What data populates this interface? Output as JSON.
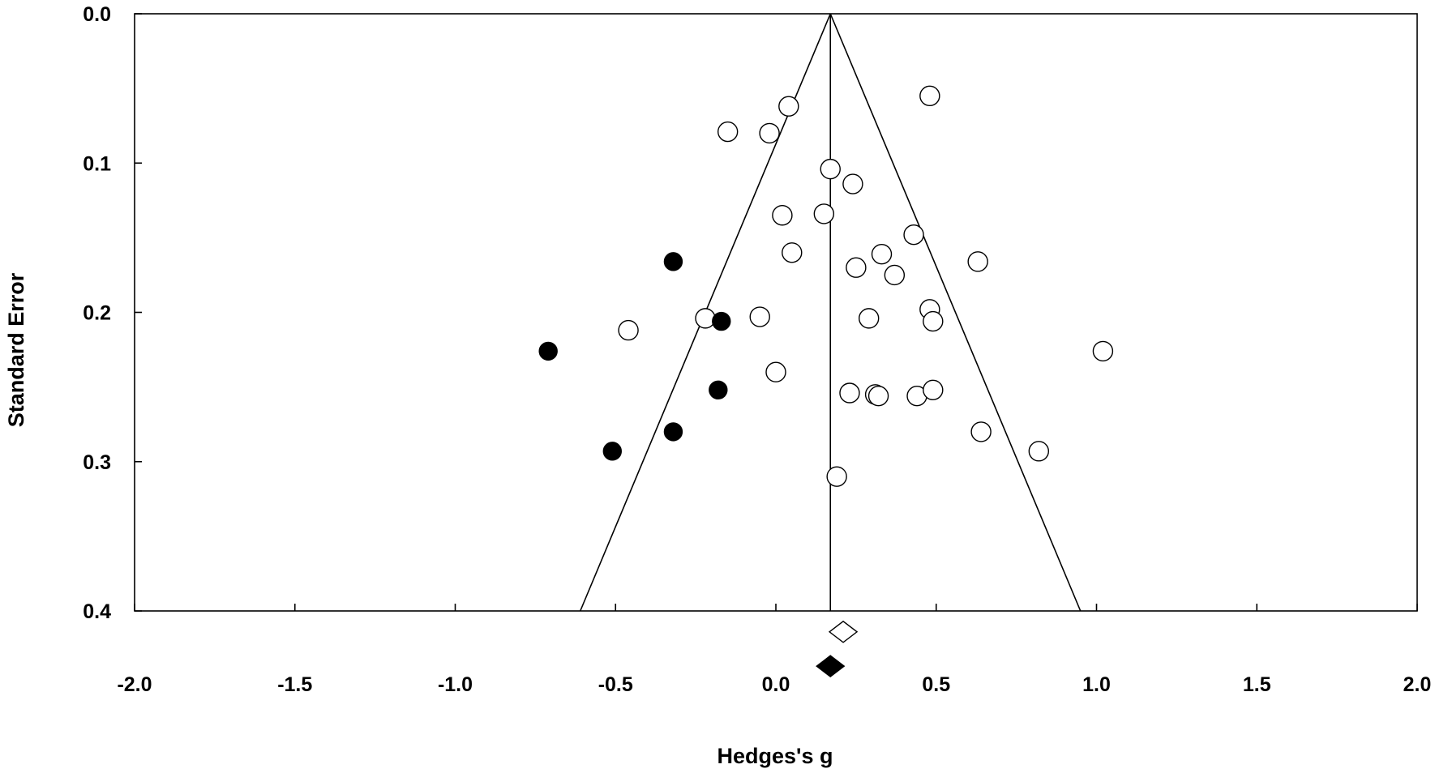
{
  "chart_data": {
    "type": "scatter",
    "title": "",
    "xlabel": "Hedges's g",
    "ylabel": "Standard Error",
    "xlim": [
      -2.0,
      2.0
    ],
    "ylim": [
      0.0,
      0.4
    ],
    "y_inverted": true,
    "x_ticks": [
      "-2.0",
      "-1.5",
      "-1.0",
      "-0.5",
      "0.0",
      "0.5",
      "1.0",
      "1.5",
      "2.0"
    ],
    "y_ticks": [
      "0.0",
      "0.1",
      "0.2",
      "0.3",
      "0.4"
    ],
    "grid": false,
    "legend": "none",
    "pooled_effect": 0.17,
    "funnel": {
      "apex": [
        0.17,
        0.0
      ],
      "base_left": [
        -0.61,
        0.4
      ],
      "base_right": [
        0.95,
        0.4
      ]
    },
    "series": [
      {
        "marker": "open-circle",
        "points": [
          {
            "x": 0.48,
            "y": 0.055
          },
          {
            "x": 0.04,
            "y": 0.062
          },
          {
            "x": -0.15,
            "y": 0.079
          },
          {
            "x": -0.02,
            "y": 0.08
          },
          {
            "x": 0.17,
            "y": 0.104
          },
          {
            "x": 0.24,
            "y": 0.114
          },
          {
            "x": 0.02,
            "y": 0.135
          },
          {
            "x": 0.15,
            "y": 0.134
          },
          {
            "x": 0.43,
            "y": 0.148
          },
          {
            "x": 0.05,
            "y": 0.16
          },
          {
            "x": 0.33,
            "y": 0.161
          },
          {
            "x": 0.63,
            "y": 0.166
          },
          {
            "x": 0.25,
            "y": 0.17
          },
          {
            "x": 0.37,
            "y": 0.175
          },
          {
            "x": 0.48,
            "y": 0.198
          },
          {
            "x": 0.49,
            "y": 0.206
          },
          {
            "x": -0.22,
            "y": 0.204
          },
          {
            "x": -0.05,
            "y": 0.203
          },
          {
            "x": 0.29,
            "y": 0.204
          },
          {
            "x": -0.46,
            "y": 0.212
          },
          {
            "x": 1.02,
            "y": 0.226
          },
          {
            "x": 0.0,
            "y": 0.24
          },
          {
            "x": 0.23,
            "y": 0.254
          },
          {
            "x": 0.31,
            "y": 0.255
          },
          {
            "x": 0.32,
            "y": 0.256
          },
          {
            "x": 0.44,
            "y": 0.256
          },
          {
            "x": 0.49,
            "y": 0.252
          },
          {
            "x": 0.64,
            "y": 0.28
          },
          {
            "x": 0.82,
            "y": 0.293
          },
          {
            "x": 0.19,
            "y": 0.31
          }
        ]
      },
      {
        "marker": "filled-circle",
        "points": [
          {
            "x": -0.32,
            "y": 0.166
          },
          {
            "x": -0.17,
            "y": 0.206
          },
          {
            "x": -0.71,
            "y": 0.226
          },
          {
            "x": -0.18,
            "y": 0.252
          },
          {
            "x": -0.32,
            "y": 0.28
          },
          {
            "x": -0.51,
            "y": 0.293
          }
        ]
      }
    ],
    "summary_diamonds": [
      {
        "marker": "open-diamond",
        "x": 0.21,
        "y": 0.414
      },
      {
        "marker": "filled-diamond",
        "x": 0.17,
        "y": 0.437
      }
    ]
  }
}
